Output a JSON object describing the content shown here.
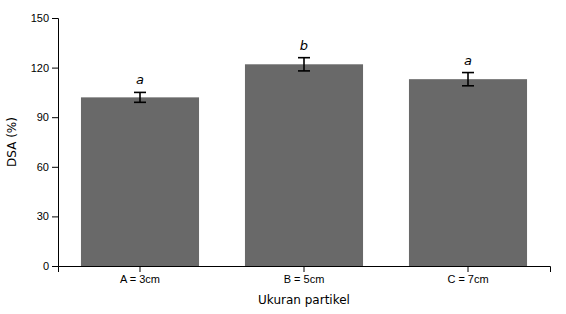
{
  "chart_data": {
    "type": "bar",
    "categories": [
      "A = 3cm",
      "B = 5cm",
      "C = 7cm"
    ],
    "values": [
      102,
      122,
      113
    ],
    "errors": [
      3,
      4,
      4
    ],
    "annotations": [
      "a",
      "b",
      "a"
    ],
    "color": "#696969",
    "xlabel": "Ukuran partikel",
    "ylabel": "DSA (%)",
    "ylim": [
      0,
      150
    ],
    "yticks": [
      0,
      30,
      60,
      90,
      120,
      150
    ],
    "grid": false
  }
}
